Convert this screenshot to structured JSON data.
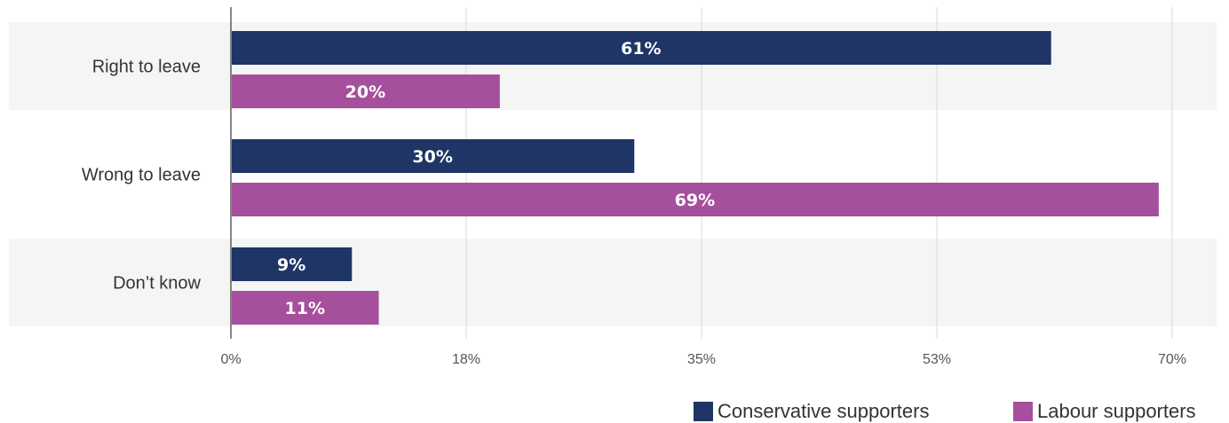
{
  "chart_data": {
    "type": "bar",
    "orientation": "horizontal",
    "categories": [
      "Right to leave",
      "Wrong to leave",
      "Don’t know"
    ],
    "series": [
      {
        "name": "Conservative supporters",
        "values": [
          61,
          30,
          9
        ],
        "color": "#1e3566"
      },
      {
        "name": "Labour supporters",
        "values": [
          20,
          69,
          11
        ],
        "color": "#a64f9c"
      }
    ],
    "data_labels": [
      [
        "61%",
        "30%",
        "9%"
      ],
      [
        "20%",
        "69%",
        "11%"
      ]
    ],
    "xlim": [
      0,
      70
    ],
    "x_ticks": [
      0,
      17.5,
      35,
      52.5,
      70
    ],
    "x_tick_labels": [
      "0%",
      "18%",
      "35%",
      "53%",
      "70%"
    ],
    "grid": "vertical",
    "legend_position": "bottom-right",
    "band_color": "#f5f5f5"
  }
}
